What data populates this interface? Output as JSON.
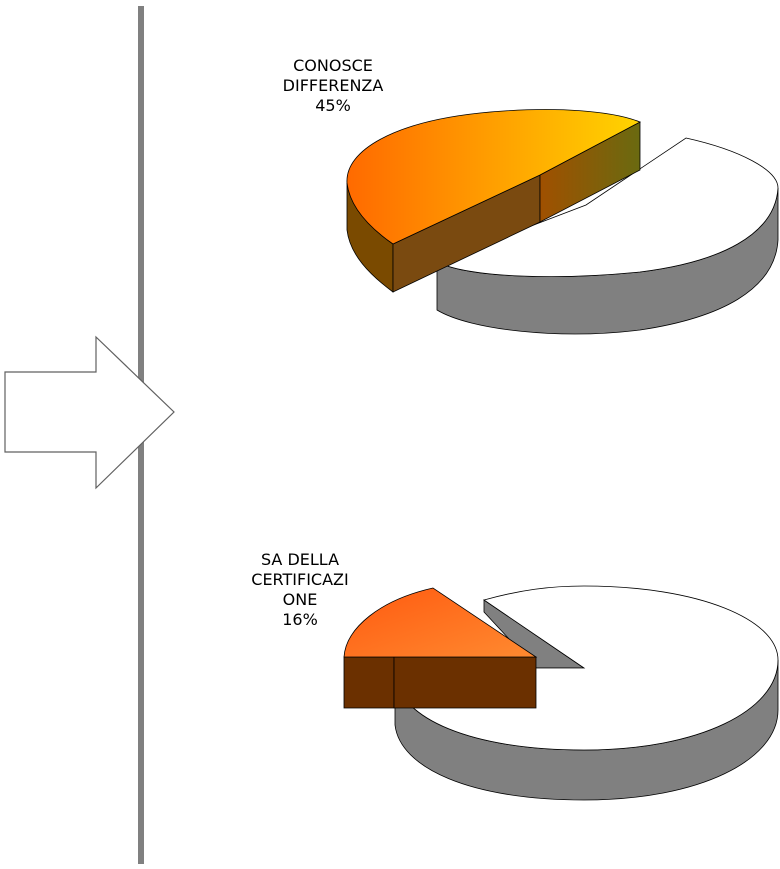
{
  "chart_data": [
    {
      "type": "pie",
      "slices": [
        {
          "label_lines": [
            "CONOSCE",
            "DIFFERENZA",
            "45%"
          ],
          "value": 45,
          "exploded": true,
          "color": "#ff6a00",
          "gradient_end": "#ffd400"
        },
        {
          "label_lines": [],
          "value": 55,
          "exploded": false,
          "color": "#ffffff"
        }
      ]
    },
    {
      "type": "pie",
      "slices": [
        {
          "label_lines": [
            "SA DELLA",
            "CERTIFICAZI",
            "ONE",
            "16%"
          ],
          "value": 16,
          "exploded": true,
          "color": "#ff6a20"
        },
        {
          "label_lines": [],
          "value": 84,
          "exploded": false,
          "color": "#ffffff"
        }
      ]
    }
  ],
  "colors": {
    "divider": "#808080",
    "side_gray": "#808080",
    "side_orange_dark": "#6b3000",
    "side_olive": "#7a6a10"
  },
  "decor": {
    "arrow_icon": "right-arrow-outline"
  }
}
